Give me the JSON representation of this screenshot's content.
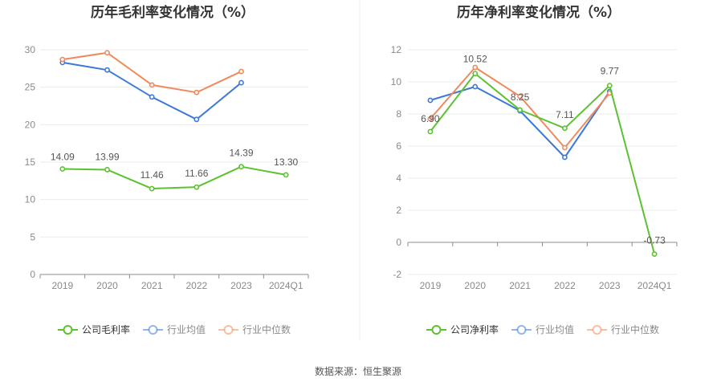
{
  "source": "数据来源：恒生聚源",
  "chart_data": [
    {
      "type": "line",
      "title": "历年毛利率变化情况（%）",
      "categories": [
        "2019",
        "2020",
        "2021",
        "2022",
        "2023",
        "2024Q1"
      ],
      "ylim": [
        0,
        30
      ],
      "yticks": [
        0,
        5,
        10,
        15,
        20,
        25,
        30
      ],
      "grid": true,
      "legend_position": "bottom-center",
      "series": [
        {
          "name": "公司毛利率",
          "color": "#5cc230",
          "values": [
            14.09,
            13.99,
            11.46,
            11.66,
            14.39,
            13.3
          ],
          "labels": [
            "14.09",
            "13.99",
            "11.46",
            "11.66",
            "14.39",
            "13.30"
          ]
        },
        {
          "name": "行业均值",
          "color": "#3d7ad6",
          "values": [
            28.3,
            27.3,
            23.7,
            20.7,
            25.6,
            null
          ]
        },
        {
          "name": "行业中位数",
          "color": "#f08a5d",
          "values": [
            28.7,
            29.6,
            25.3,
            24.3,
            27.1,
            null
          ]
        }
      ]
    },
    {
      "type": "line",
      "title": "历年净利率变化情况（%）",
      "categories": [
        "2019",
        "2020",
        "2021",
        "2022",
        "2023",
        "2024Q1"
      ],
      "ylim": [
        -2,
        12
      ],
      "yticks": [
        -2,
        0,
        2,
        4,
        6,
        8,
        10,
        12
      ],
      "grid": true,
      "legend_position": "bottom-center",
      "series": [
        {
          "name": "公司净利率",
          "color": "#5cc230",
          "values": [
            6.9,
            10.52,
            8.25,
            7.11,
            9.77,
            -0.73
          ],
          "labels": [
            "6.90",
            "10.52",
            "8.25",
            "7.11",
            "9.77",
            "-0.73"
          ]
        },
        {
          "name": "行业均值",
          "color": "#3d7ad6",
          "values": [
            8.85,
            9.7,
            8.2,
            5.3,
            9.4,
            null
          ]
        },
        {
          "name": "行业中位数",
          "color": "#f08a5d",
          "values": [
            7.7,
            10.9,
            9.1,
            5.9,
            9.3,
            null
          ]
        }
      ]
    }
  ]
}
